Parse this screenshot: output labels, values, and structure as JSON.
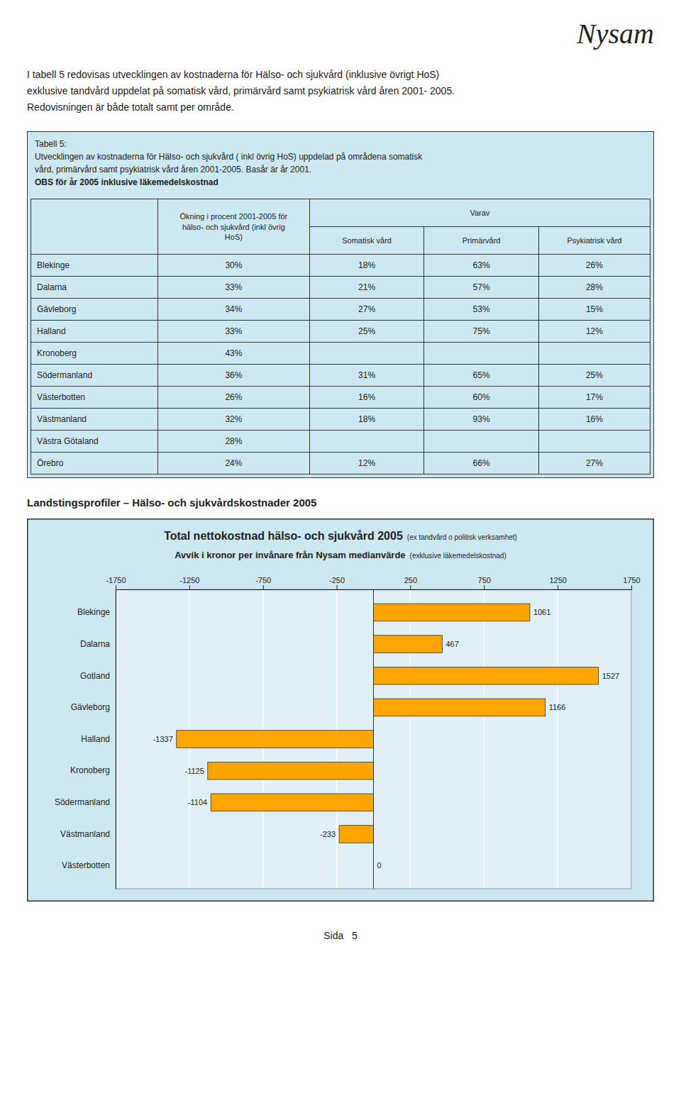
{
  "page": {
    "title": "Nysam",
    "intro": "I tabell 5 redovisas utvecklingen av kostnaderna för Hälso- och sjukvård (inklusive övrigt HoS)\nexklusive tandvård uppdelat på somatisk vård, primärvård samt psykiatrisk vård åren 2001- 2005.\nRedovisningen är både totalt samt per område.",
    "section_title": "Landstingsprofiler – Hälso- och sjukvårdskostnader 2005",
    "footer": "Sida   5"
  },
  "table": {
    "caption": [
      "Tabell 5:",
      "Utvecklingen av kostnaderna för Hälso- och sjukvård ( inkl övrig HoS) uppdelad på områdena somatisk",
      "vård, primärvård samt psykiatrisk vård åren 2001-2005. Basår är år 2001."
    ],
    "caption_bold": "OBS för år 2005 inklusive läkemedelskostnad",
    "header": "Ökning i procent 2001-2005 för\nhälso- och sjukvård (inkl övrig\nHoS)",
    "header_group": "Varav",
    "sub_headers": [
      "Somatisk vård",
      "Primärvård",
      "Psykiatrisk vård"
    ],
    "rows": [
      {
        "region": "Blekinge",
        "values": [
          "30%",
          "18%",
          "63%",
          "26%"
        ]
      },
      {
        "region": "Dalarna",
        "values": [
          "33%",
          "21%",
          "57%",
          "28%"
        ]
      },
      {
        "region": "Gävleborg",
        "values": [
          "34%",
          "27%",
          "53%",
          "15%"
        ]
      },
      {
        "region": "Halland",
        "values": [
          "33%",
          "25%",
          "75%",
          "12%"
        ]
      },
      {
        "region": "Kronoberg",
        "values": [
          "43%",
          null,
          null,
          null
        ]
      },
      {
        "region": "Södermanland",
        "values": [
          "36%",
          "31%",
          "65%",
          "25%"
        ]
      },
      {
        "region": "Västerbotten",
        "values": [
          "26%",
          "16%",
          "60%",
          "17%"
        ]
      },
      {
        "region": "Västmanland",
        "values": [
          "32%",
          "18%",
          "93%",
          "16%"
        ]
      },
      {
        "region": "Västra Götaland",
        "values": [
          "28%",
          null,
          null,
          null
        ]
      },
      {
        "region": "Örebro",
        "values": [
          "24%",
          "12%",
          "66%",
          "27%"
        ]
      }
    ]
  },
  "chart_data": {
    "type": "bar",
    "orientation": "horizontal",
    "title": "Total nettokostnad hälso- och sjukvård 2005",
    "subtitle": "Avvik i kronor per invånare från Nysam medianvärde",
    "annotations": [
      "(ex tandvård o politisk verksamhet)",
      "(exklusive läkemedelskostnad)"
    ],
    "categories": [
      "Blekinge",
      "Dalarna",
      "Gotland",
      "Gävleborg",
      "Halland",
      "Kronoberg",
      "Södermanland",
      "Västmanland",
      "Västerbotten"
    ],
    "values": [
      1061,
      467,
      1527,
      1166,
      -1337,
      -1125,
      -1104,
      -233,
      0
    ],
    "color": "#FFA500",
    "xlim": [
      -1750,
      1750
    ],
    "xticks": [
      -1750,
      -1250,
      -750,
      -250,
      250,
      750,
      1250,
      1750
    ],
    "grid": true,
    "data_labels": true
  }
}
